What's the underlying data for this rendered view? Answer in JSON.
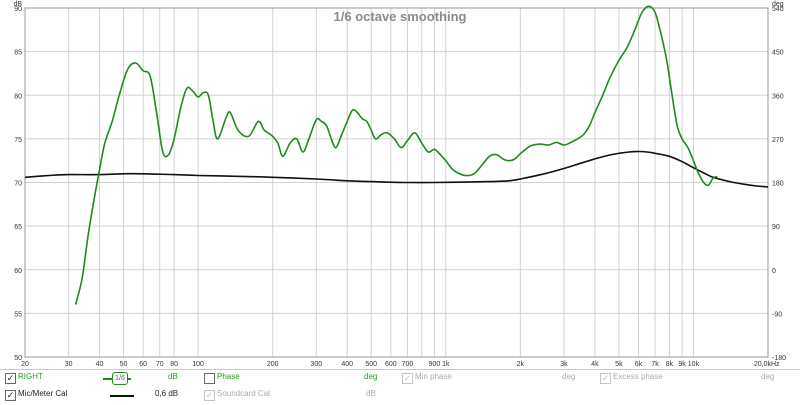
{
  "chart_data": {
    "type": "line",
    "title": "1/6 octave smoothing",
    "x_scale": "log",
    "xlim": [
      20,
      20000
    ],
    "x_unit": "Hz",
    "ylim": [
      50,
      90
    ],
    "y2lim": [
      -180,
      540
    ],
    "y2_unit": "deg",
    "grid": true,
    "x_ticks": [
      {
        "v": 20,
        "label": "20"
      },
      {
        "v": 30,
        "label": "30"
      },
      {
        "v": 40,
        "label": "40"
      },
      {
        "v": 50,
        "label": "50"
      },
      {
        "v": 60,
        "label": "60"
      },
      {
        "v": 70,
        "label": "70"
      },
      {
        "v": 80,
        "label": "80"
      },
      {
        "v": 100,
        "label": "100"
      },
      {
        "v": 200,
        "label": "200"
      },
      {
        "v": 300,
        "label": "300"
      },
      {
        "v": 400,
        "label": "400"
      },
      {
        "v": 500,
        "label": "500"
      },
      {
        "v": 600,
        "label": "600"
      },
      {
        "v": 700,
        "label": "700"
      },
      {
        "v": 900,
        "label": "900"
      },
      {
        "v": 1000,
        "label": "1k"
      },
      {
        "v": 2000,
        "label": "2k"
      },
      {
        "v": 3000,
        "label": "3k"
      },
      {
        "v": 4000,
        "label": "4k"
      },
      {
        "v": 5000,
        "label": "5k"
      },
      {
        "v": 6000,
        "label": "6k"
      },
      {
        "v": 7000,
        "label": "7k"
      },
      {
        "v": 8000,
        "label": "8k"
      },
      {
        "v": 9000,
        "label": "9k"
      },
      {
        "v": 10000,
        "label": "10k"
      },
      {
        "v": 20000,
        "label": "20,0k"
      }
    ],
    "x_minor_gridlines": [
      800,
      8000
    ],
    "y_ticks": [
      90,
      85,
      80,
      75,
      70,
      65,
      60,
      55,
      50
    ],
    "y_top_label": "dB",
    "y2_ticks": [
      540,
      450,
      360,
      270,
      180,
      90,
      0,
      -90,
      -180
    ],
    "y2_top_label": "deg",
    "x_unit_label": "Hz",
    "series": [
      {
        "name": "RIGHT",
        "color": "#1f8a1f",
        "points": [
          [
            32,
            56
          ],
          [
            34,
            59
          ],
          [
            36,
            64
          ],
          [
            38,
            68
          ],
          [
            40,
            71.5
          ],
          [
            42,
            74.5
          ],
          [
            45,
            77
          ],
          [
            48,
            80
          ],
          [
            52,
            83
          ],
          [
            56,
            83.7
          ],
          [
            60,
            82.8
          ],
          [
            64,
            82.2
          ],
          [
            68,
            78
          ],
          [
            72,
            73.5
          ],
          [
            76,
            73.2
          ],
          [
            80,
            75
          ],
          [
            85,
            78.5
          ],
          [
            90,
            80.8
          ],
          [
            95,
            80.5
          ],
          [
            100,
            79.8
          ],
          [
            105,
            80.3
          ],
          [
            110,
            80
          ],
          [
            115,
            77
          ],
          [
            120,
            75
          ],
          [
            130,
            77.5
          ],
          [
            135,
            78
          ],
          [
            145,
            76
          ],
          [
            160,
            75.3
          ],
          [
            175,
            77
          ],
          [
            185,
            76
          ],
          [
            200,
            75.3
          ],
          [
            210,
            74.5
          ],
          [
            220,
            73
          ],
          [
            235,
            74.5
          ],
          [
            250,
            75
          ],
          [
            265,
            73.5
          ],
          [
            280,
            75
          ],
          [
            300,
            77.2
          ],
          [
            315,
            77
          ],
          [
            330,
            76.5
          ],
          [
            345,
            75
          ],
          [
            360,
            74
          ],
          [
            380,
            75.5
          ],
          [
            400,
            77
          ],
          [
            420,
            78.3
          ],
          [
            440,
            78
          ],
          [
            460,
            77.3
          ],
          [
            480,
            77
          ],
          [
            500,
            76
          ],
          [
            520,
            75
          ],
          [
            550,
            75.5
          ],
          [
            580,
            75.7
          ],
          [
            620,
            75
          ],
          [
            660,
            74
          ],
          [
            700,
            74.8
          ],
          [
            750,
            75.7
          ],
          [
            800,
            74.5
          ],
          [
            850,
            73.5
          ],
          [
            900,
            73.8
          ],
          [
            950,
            73.2
          ],
          [
            1000,
            72.5
          ],
          [
            1050,
            71.7
          ],
          [
            1100,
            71.2
          ],
          [
            1200,
            70.8
          ],
          [
            1300,
            71
          ],
          [
            1400,
            72
          ],
          [
            1500,
            73
          ],
          [
            1600,
            73.2
          ],
          [
            1700,
            72.7
          ],
          [
            1800,
            72.5
          ],
          [
            1900,
            72.7
          ],
          [
            2000,
            73.3
          ],
          [
            2200,
            74.2
          ],
          [
            2400,
            74.4
          ],
          [
            2600,
            74.3
          ],
          [
            2800,
            74.6
          ],
          [
            3000,
            74.3
          ],
          [
            3200,
            74.6
          ],
          [
            3400,
            75
          ],
          [
            3600,
            75.5
          ],
          [
            3800,
            76.5
          ],
          [
            4000,
            78
          ],
          [
            4300,
            80
          ],
          [
            4600,
            82
          ],
          [
            5000,
            84
          ],
          [
            5400,
            85.5
          ],
          [
            5800,
            87.5
          ],
          [
            6200,
            89.5
          ],
          [
            6600,
            90.2
          ],
          [
            7000,
            89.5
          ],
          [
            7400,
            87
          ],
          [
            7800,
            84
          ],
          [
            8200,
            80
          ],
          [
            8600,
            76.5
          ],
          [
            9000,
            75
          ],
          [
            9500,
            74
          ],
          [
            10000,
            72.5
          ],
          [
            10500,
            71
          ],
          [
            11000,
            70
          ],
          [
            11500,
            69.7
          ],
          [
            12000,
            70.5
          ],
          [
            12500,
            70.7
          ]
        ]
      },
      {
        "name": "Mic/Meter Cal",
        "color": "#111111",
        "points": [
          [
            20,
            70.6
          ],
          [
            25,
            70.8
          ],
          [
            30,
            70.9
          ],
          [
            40,
            70.9
          ],
          [
            50,
            71
          ],
          [
            60,
            71
          ],
          [
            80,
            70.9
          ],
          [
            100,
            70.8
          ],
          [
            150,
            70.7
          ],
          [
            200,
            70.6
          ],
          [
            300,
            70.4
          ],
          [
            400,
            70.2
          ],
          [
            500,
            70.1
          ],
          [
            700,
            70.0
          ],
          [
            900,
            70.0
          ],
          [
            1200,
            70.05
          ],
          [
            1500,
            70.1
          ],
          [
            1800,
            70.2
          ],
          [
            2000,
            70.4
          ],
          [
            2500,
            71
          ],
          [
            3000,
            71.6
          ],
          [
            3500,
            72.2
          ],
          [
            4000,
            72.7
          ],
          [
            4500,
            73.1
          ],
          [
            5000,
            73.35
          ],
          [
            5500,
            73.5
          ],
          [
            6000,
            73.55
          ],
          [
            6500,
            73.5
          ],
          [
            7000,
            73.35
          ],
          [
            8000,
            73
          ],
          [
            9000,
            72.4
          ],
          [
            10000,
            71.7
          ],
          [
            11000,
            71.1
          ],
          [
            12000,
            70.6
          ],
          [
            14000,
            70.1
          ],
          [
            16000,
            69.8
          ],
          [
            18000,
            69.6
          ],
          [
            20000,
            69.5
          ]
        ]
      }
    ]
  },
  "legend": {
    "row1": {
      "right_check": "✓",
      "right_label": "RIGHT",
      "smoothing": "1/6",
      "right_unit": "dB",
      "phase_label": "Phase",
      "phase_unit": "deg",
      "min_phase_check": "✓",
      "min_phase_label": "Min phase",
      "min_phase_unit": "deg",
      "excess_check": "✓",
      "excess_label": "Excess phase",
      "excess_unit": "deg"
    },
    "row2": {
      "cal_check": "✓",
      "cal_label": "Mic/Meter Cal",
      "cal_value": "0,6 dB",
      "soundcard_check": "✓",
      "soundcard_label": "Soundcard Cal",
      "soundcard_unit": "dB"
    }
  }
}
